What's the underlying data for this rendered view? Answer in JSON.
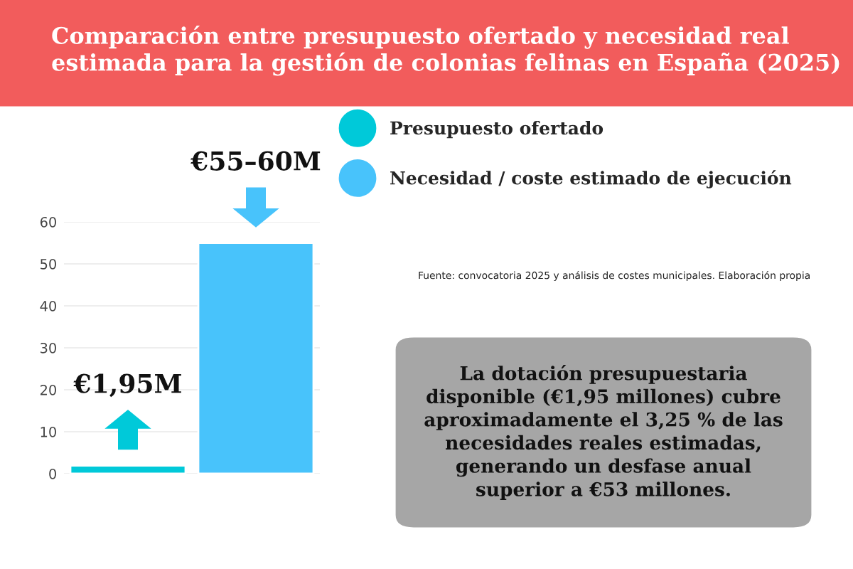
{
  "chart_data": {
    "type": "bar",
    "title": "Comparación entre presupuesto ofertado y necesidad real estimada para la gestión de colonias felinas en España (2025)",
    "categories": [
      null,
      null
    ],
    "series": [
      {
        "name": "Presupuesto ofertado",
        "color": "#00c9d9",
        "values": [
          1.95,
          null
        ],
        "value_labels": [
          "€1,95M",
          null
        ]
      },
      {
        "name": "Necesidad / coste estimado de ejecución",
        "color": "#48c3fb",
        "values": [
          null,
          55
        ],
        "value_labels": [
          null,
          "€55–60M"
        ]
      }
    ],
    "ylim": [
      0,
      60
    ],
    "yticks": [
      0,
      10,
      20,
      30,
      40,
      50,
      60
    ],
    "grid": "y",
    "legend": "right",
    "tick_labels": "y",
    "annotations": [
      "Fuente: convocatoria 2025 y análisis de costes municipales. Elaboración propia",
      "La dotación presupuestaria disponible (€1,95 millones) cubre aproximadamente el 3,25 % de las necesidades reales estimadas, generando un desfase anual superior a €53 millones."
    ]
  }
}
